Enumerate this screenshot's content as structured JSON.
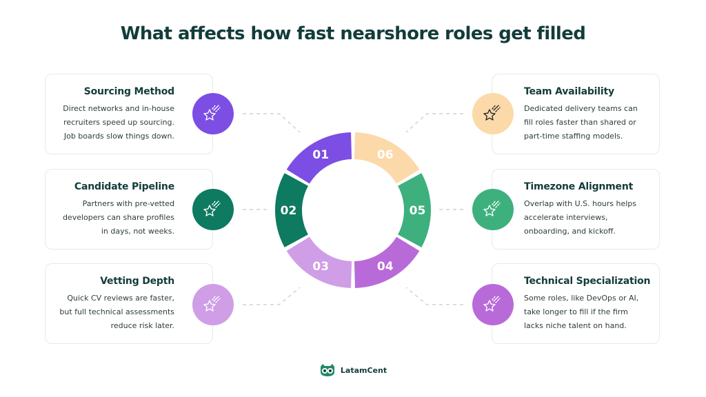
{
  "title": "What affects how fast nearshore roles get filled",
  "factors": [
    {
      "num": "01",
      "title": "Sourcing Method",
      "desc": "Direct networks and in-house recruiters speed up sourcing. Job boards slow things down.",
      "lines": [
        "Direct networks and in-house",
        "recruiters speed up sourcing.",
        "Job boards slow things down."
      ],
      "color": "#7c4ee4",
      "icon": "star-icon"
    },
    {
      "num": "02",
      "title": "Candidate Pipeline",
      "desc": "Partners with pre-vetted developers can share profiles in days, not weeks.",
      "lines": [
        "Partners with pre-vetted",
        "developers can share profiles",
        "in days, not weeks."
      ],
      "color": "#0e7a5f",
      "icon": "star-icon"
    },
    {
      "num": "03",
      "title": "Vetting Depth",
      "desc": "Quick CV reviews are faster, but full technical assessments reduce risk later.",
      "lines": [
        "Quick CV reviews are faster,",
        "but full technical assessments",
        "reduce risk later."
      ],
      "color": "#cf9ee6",
      "icon": "star-icon"
    },
    {
      "num": "04",
      "title": "Technical Specialization",
      "desc": "Some roles, like DevOps or AI, take longer to fill if the firm lacks niche talent on hand.",
      "lines": [
        "Some roles, like DevOps or AI,",
        "take longer to fill if the firm",
        "lacks niche talent on hand."
      ],
      "color": "#b96ad9",
      "icon": "star-icon"
    },
    {
      "num": "05",
      "title": "Timezone Alignment",
      "desc": "Overlap with U.S. hours helps accelerate interviews, onboarding, and kickoff.",
      "lines": [
        "Overlap with U.S. hours helps",
        "accelerate interviews,",
        "onboarding, and kickoff."
      ],
      "color": "#3eb07e",
      "icon": "star-icon"
    },
    {
      "num": "06",
      "title": "Team Availability",
      "desc": "Dedicated delivery teams can fill roles faster than shared or part-time staffing models.",
      "lines": [
        "Dedicated delivery teams can",
        "fill roles faster than shared or",
        "part-time staffing models."
      ],
      "color": "#fcd9a8",
      "icon": "star-icon"
    }
  ],
  "footer": {
    "brand": "LatamCent",
    "logo": "owl-logo-icon",
    "logo_color": "#1f8a68"
  },
  "colors": {
    "title": "#123c3a",
    "card_border": "#e6e9ec",
    "connector": "#d9dde0"
  }
}
